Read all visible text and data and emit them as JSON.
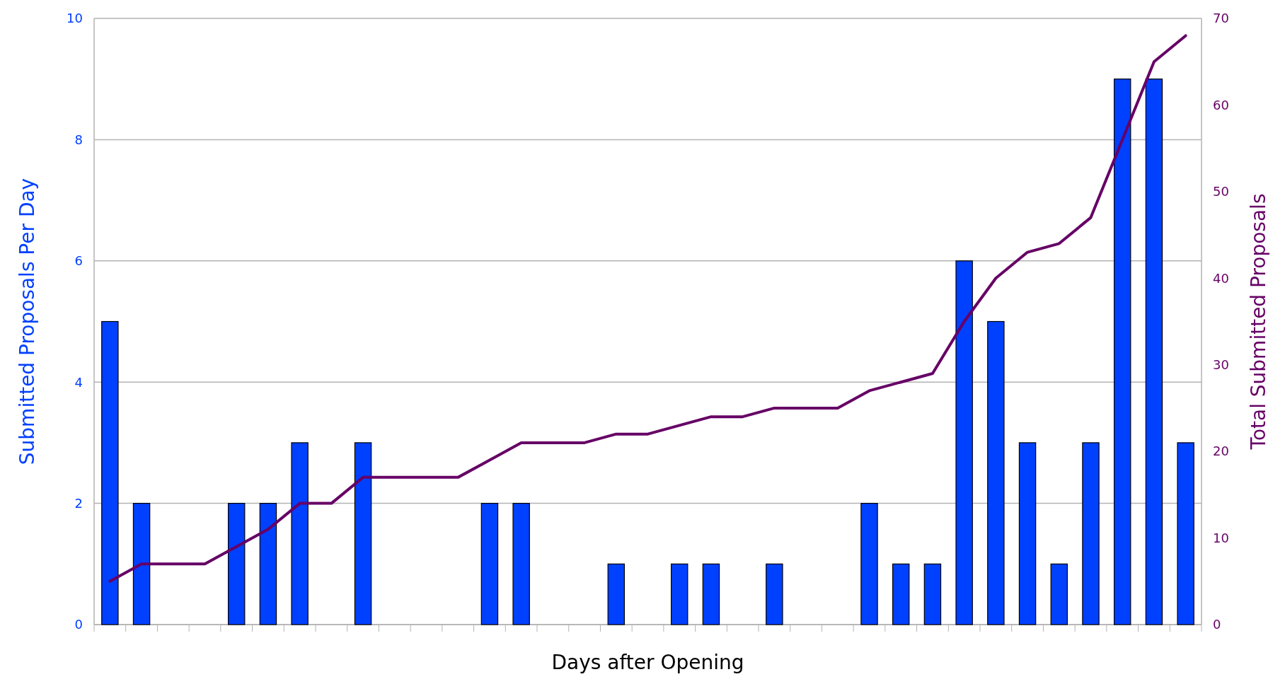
{
  "chart_data": {
    "type": "bar",
    "xlabel": "Days after Opening",
    "ylabel": "Submitted Proposals Per Day",
    "y2label": "Total Submitted Proposals",
    "categories": [
      null,
      null,
      null,
      null,
      null,
      null,
      null,
      null,
      null,
      null,
      null,
      null,
      null,
      null,
      null,
      null,
      null,
      null,
      null,
      null,
      null,
      null,
      null,
      null,
      null,
      null,
      null,
      null,
      null,
      null,
      null,
      null,
      null,
      null,
      null
    ],
    "series": [
      {
        "color": "#0040ff",
        "values": [
          5,
          2,
          0,
          0,
          2,
          2,
          3,
          0,
          3,
          0,
          0,
          0,
          2,
          2,
          0,
          0,
          1,
          0,
          1,
          1,
          0,
          1,
          0,
          0,
          2,
          1,
          1,
          6,
          5,
          3,
          1,
          3,
          9,
          9,
          3
        ]
      },
      {
        "type": "line",
        "axis": "y2",
        "color": "#660066",
        "values": [
          5,
          7,
          7,
          7,
          9,
          11,
          14,
          14,
          17,
          17,
          17,
          17,
          19,
          21,
          21,
          21,
          22,
          22,
          23,
          24,
          24,
          25,
          25,
          25,
          27,
          28,
          29,
          35,
          40,
          43,
          44,
          47,
          56,
          65,
          68
        ]
      }
    ],
    "ylim": [
      0,
      10
    ],
    "yticks": [
      0,
      2,
      4,
      6,
      8,
      10
    ],
    "y2lim": [
      0,
      70
    ],
    "y2ticks": [
      0,
      10,
      20,
      30,
      40,
      50,
      60,
      70
    ],
    "grid": "y",
    "tick_labels": "y"
  }
}
